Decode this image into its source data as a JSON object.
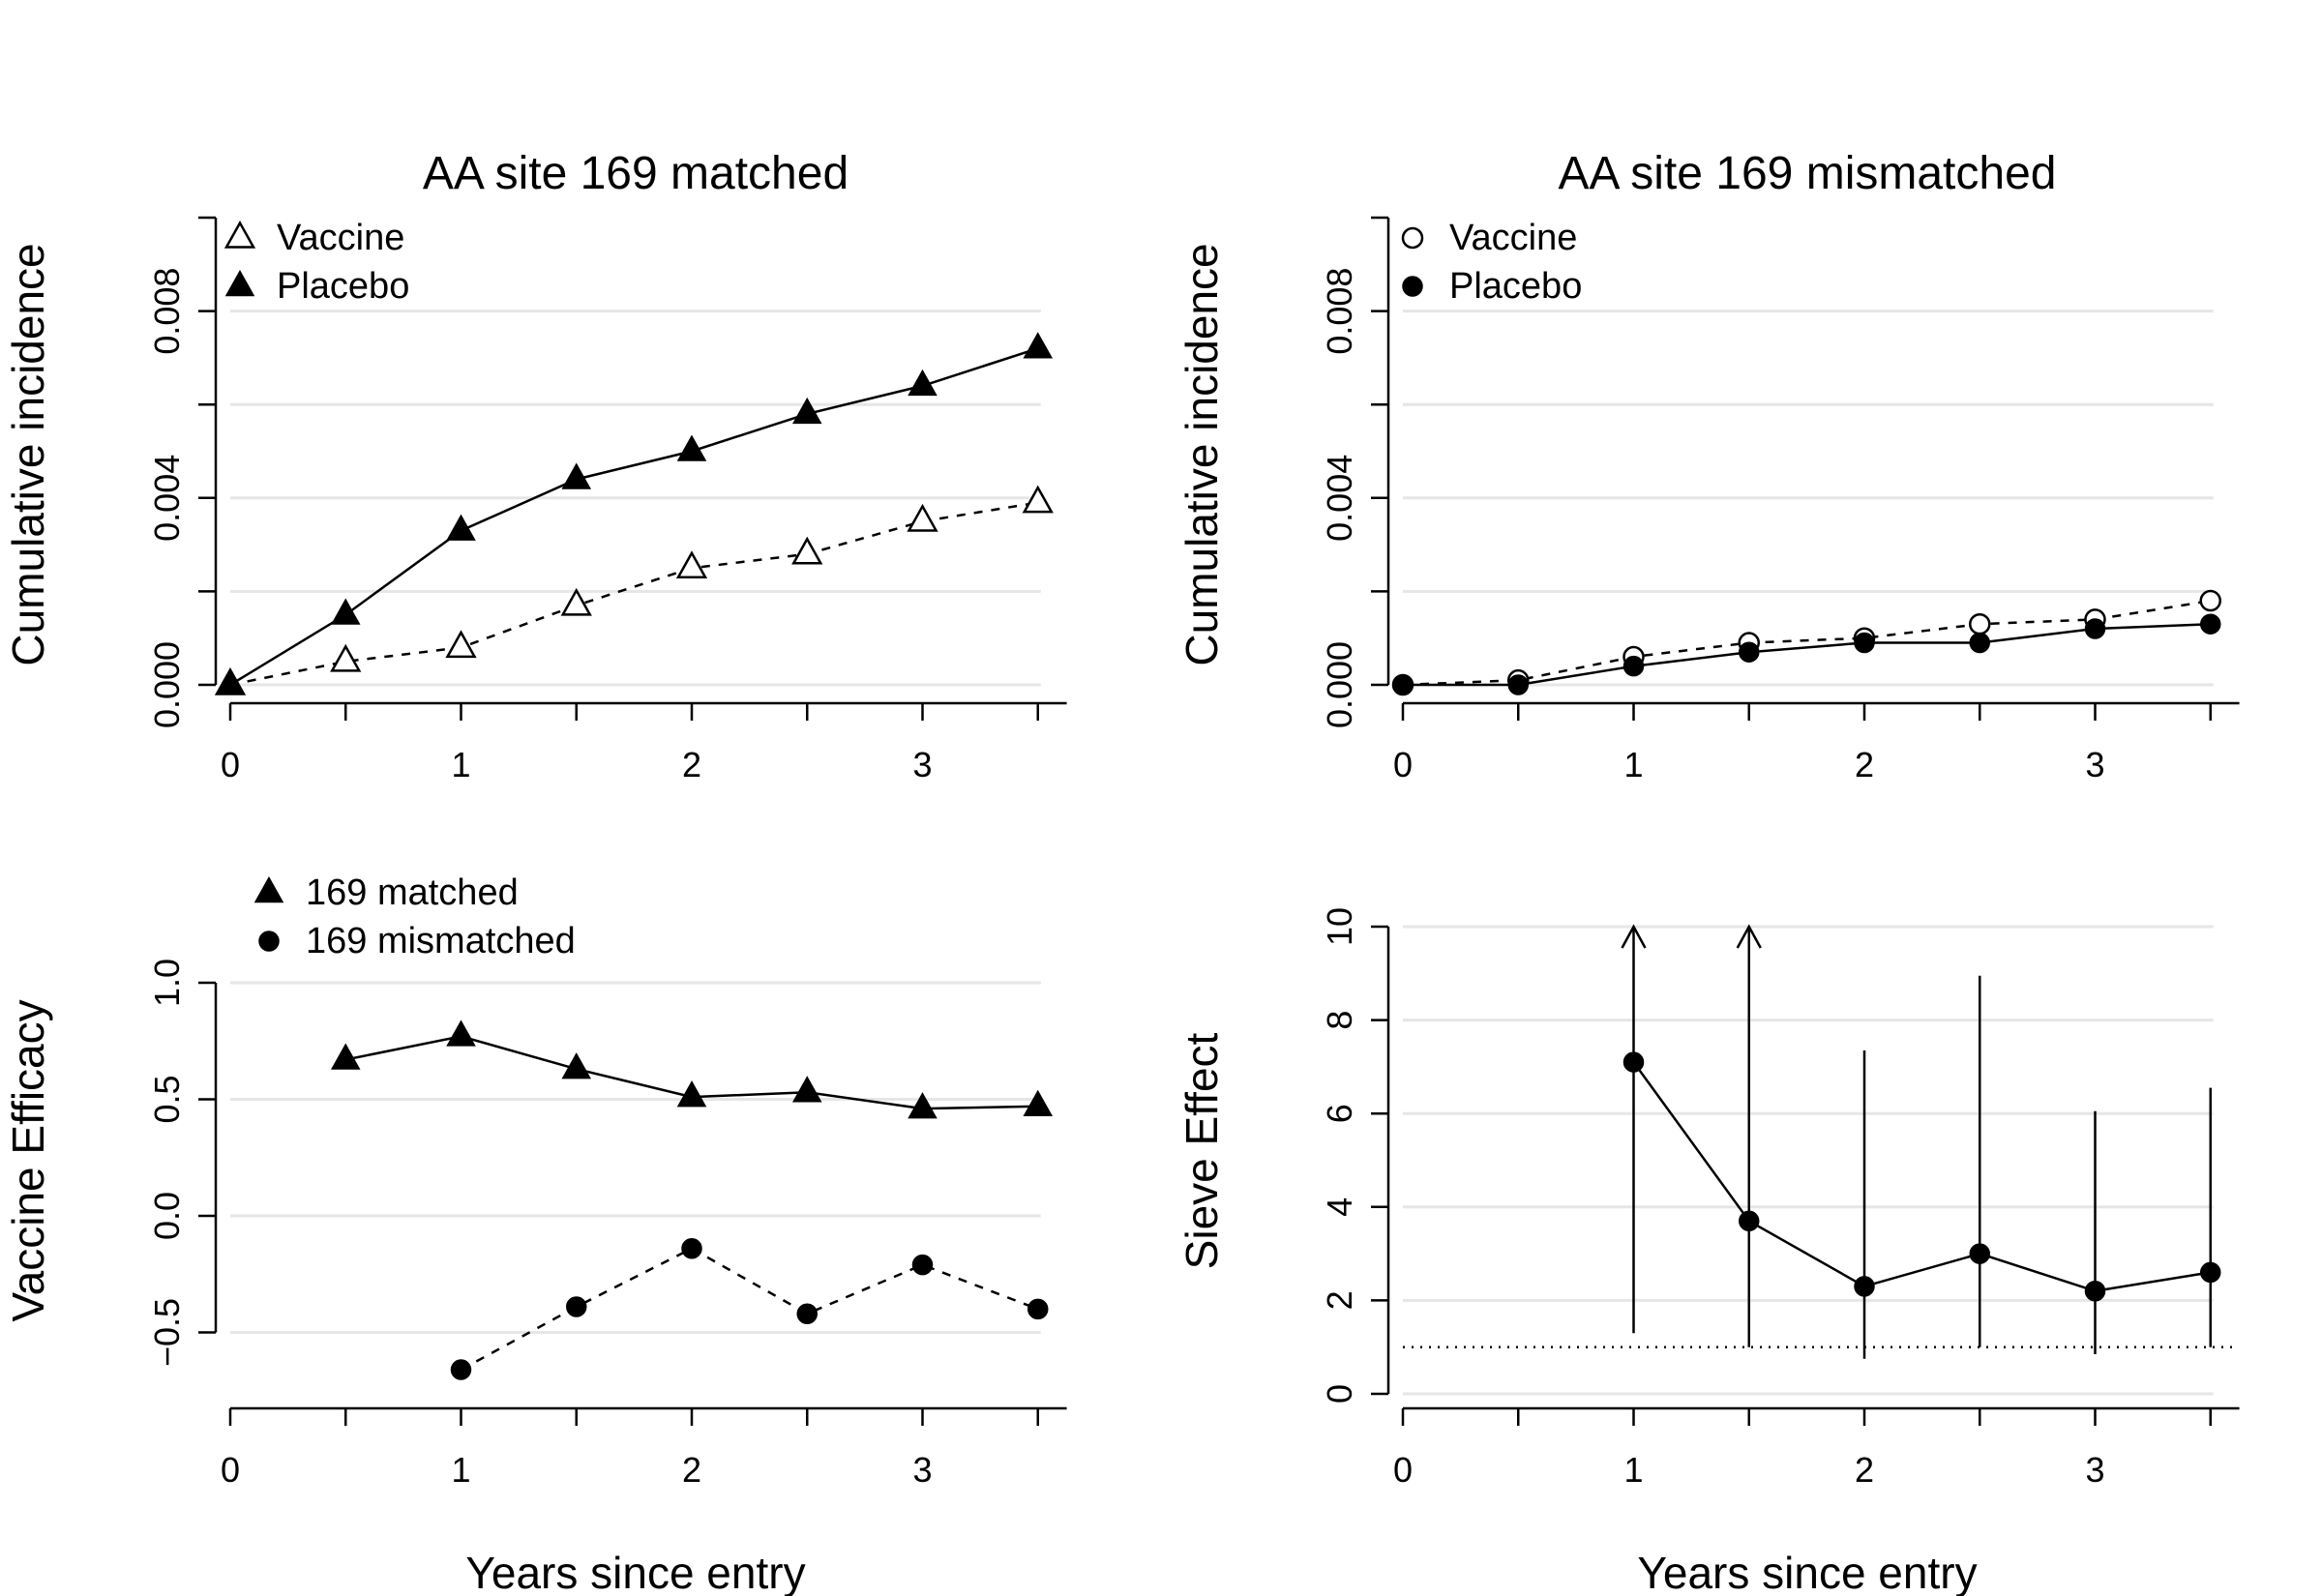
{
  "chart_data": [
    {
      "id": "tl",
      "type": "line",
      "title": "AA site 169 matched",
      "xlabel": "",
      "ylabel": "Cumulative incidence",
      "xlim": [
        0,
        3.6
      ],
      "ylim": [
        -0.0004,
        0.01
      ],
      "xticks": [
        0,
        1,
        2,
        3
      ],
      "xtick_labels": [
        "0",
        "1",
        "2",
        "3"
      ],
      "yticks": [
        0.0,
        0.004,
        0.008
      ],
      "ytick_labels": [
        "0.000",
        "0.004",
        "0.008"
      ],
      "yticks_minor": [
        0.002,
        0.006,
        0.01
      ],
      "grid": [
        0.0,
        0.002,
        0.004,
        0.006,
        0.008
      ],
      "legend_position": "top-left",
      "series": [
        {
          "name": "Vaccine",
          "marker": "open-triangle",
          "line": "dashed",
          "x": [
            0,
            0.5,
            1,
            1.5,
            2,
            2.5,
            3,
            3.5
          ],
          "y": [
            0.0,
            0.0005,
            0.0008,
            0.0017,
            0.0025,
            0.0028,
            0.0035,
            0.0039
          ]
        },
        {
          "name": "Placebo",
          "marker": "filled-triangle",
          "line": "solid",
          "x": [
            0,
            0.5,
            1,
            1.5,
            2,
            2.5,
            3,
            3.5
          ],
          "y": [
            0.0,
            0.0015,
            0.0033,
            0.0044,
            0.005,
            0.0058,
            0.0064,
            0.0072
          ]
        }
      ]
    },
    {
      "id": "tr",
      "type": "line",
      "title": "AA site 169 mismatched",
      "xlabel": "",
      "ylabel": "Cumulative incidence",
      "xlim": [
        0,
        3.6
      ],
      "ylim": [
        -0.0004,
        0.01
      ],
      "xticks": [
        0,
        1,
        2,
        3
      ],
      "xtick_labels": [
        "0",
        "1",
        "2",
        "3"
      ],
      "yticks": [
        0.0,
        0.004,
        0.008
      ],
      "ytick_labels": [
        "0.000",
        "0.004",
        "0.008"
      ],
      "yticks_minor": [
        0.002,
        0.006,
        0.01
      ],
      "grid": [
        0.0,
        0.002,
        0.004,
        0.006,
        0.008
      ],
      "legend_position": "top-left",
      "series": [
        {
          "name": "Vaccine",
          "marker": "open-circle",
          "line": "dashed",
          "x": [
            0,
            0.5,
            1,
            1.5,
            2,
            2.5,
            3,
            3.5
          ],
          "y": [
            0.0,
            0.0001,
            0.0006,
            0.0009,
            0.001,
            0.0013,
            0.0014,
            0.0018
          ]
        },
        {
          "name": "Placebo",
          "marker": "filled-circle",
          "line": "solid",
          "x": [
            0,
            0.5,
            1,
            1.5,
            2,
            2.5,
            3,
            3.5
          ],
          "y": [
            0.0,
            0.0,
            0.0004,
            0.0007,
            0.0009,
            0.0009,
            0.0012,
            0.0013
          ]
        }
      ]
    },
    {
      "id": "bl",
      "type": "line",
      "title": "",
      "xlabel": "Years since entry",
      "ylabel": "Vaccine Efficacy",
      "xlim": [
        0,
        3.6
      ],
      "ylim": [
        -0.82,
        1.0
      ],
      "xticks": [
        0,
        1,
        2,
        3
      ],
      "xtick_labels": [
        "0",
        "1",
        "2",
        "3"
      ],
      "yticks": [
        -0.5,
        0.0,
        0.5,
        1.0
      ],
      "ytick_labels": [
        "−0.5",
        "0.0",
        "0.5",
        "1.0"
      ],
      "grid": [
        -0.5,
        0.0,
        0.5,
        1.0
      ],
      "legend_position": "top-left, above plot",
      "series": [
        {
          "name": "169 matched",
          "marker": "filled-triangle",
          "line": "solid",
          "x": [
            0.5,
            1,
            1.5,
            2,
            2.5,
            3,
            3.5
          ],
          "y": [
            0.67,
            0.77,
            0.63,
            0.51,
            0.53,
            0.46,
            0.47
          ]
        },
        {
          "name": "169 mismatched",
          "marker": "filled-circle",
          "line": "dashed",
          "x": [
            1,
            1.5,
            2,
            2.5,
            3,
            3.5
          ],
          "y": [
            -0.66,
            -0.39,
            -0.14,
            -0.42,
            -0.21,
            -0.4
          ]
        }
      ]
    },
    {
      "id": "br",
      "type": "line",
      "title": "",
      "xlabel": "Years since entry",
      "ylabel": "Sieve Effect",
      "xlim": [
        0,
        3.6
      ],
      "ylim": [
        0,
        10.4
      ],
      "xticks": [
        0,
        1,
        2,
        3
      ],
      "xtick_labels": [
        "0",
        "1",
        "2",
        "3"
      ],
      "yticks": [
        0,
        2,
        4,
        6,
        8,
        10
      ],
      "ytick_labels": [
        "0",
        "2",
        "4",
        "6",
        "8",
        "10"
      ],
      "grid": [
        0,
        2,
        4,
        6,
        8,
        10
      ],
      "reference_line": {
        "y": 1,
        "style": "dotted"
      },
      "series": [
        {
          "name": "",
          "marker": "filled-circle",
          "line": "solid",
          "x": [
            1,
            1.5,
            2,
            2.5,
            3,
            3.5
          ],
          "y": [
            7.1,
            3.7,
            2.3,
            3.0,
            2.2,
            2.6
          ],
          "ci_lower": [
            1.3,
            1.0,
            0.75,
            1.0,
            0.85,
            1.0
          ],
          "ci_upper": [
            10,
            10,
            7.35,
            8.95,
            6.05,
            6.55
          ],
          "ci_arrow_up": [
            true,
            true,
            false,
            false,
            false,
            false
          ]
        }
      ]
    }
  ]
}
